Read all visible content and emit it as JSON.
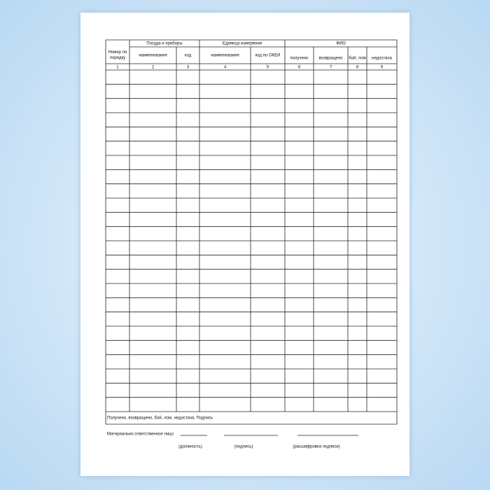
{
  "table": {
    "header": {
      "row_number": "Номер по порядку",
      "dishes": {
        "title": "Посуда и приборы",
        "name": "наименование",
        "code": "код"
      },
      "unit": {
        "title": "Единица измерения",
        "name": "наименование",
        "code": "код по ОКЕИ"
      },
      "person": {
        "title": "ФИО",
        "received": "получено",
        "returned": "возвращено",
        "broken": "бой, лом",
        "shortage": "недостача"
      }
    },
    "column_numbers": [
      1,
      2,
      3,
      4,
      5,
      6,
      7,
      8,
      9
    ],
    "footer": "Получено, возвращено, бой, лом, недостача. Подпись"
  },
  "signature": {
    "label": "Материально ответственное лицо",
    "position": "(должность)",
    "sign": "(подпись)",
    "decoding": "(расшифровка подписи)"
  }
}
